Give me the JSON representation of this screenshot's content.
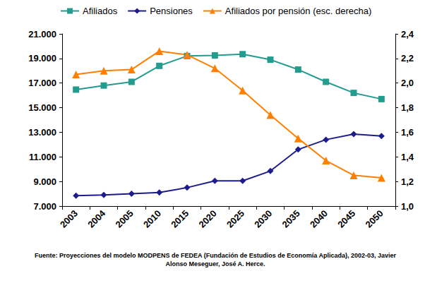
{
  "chart_data": {
    "type": "line",
    "categories": [
      "2003",
      "2004",
      "2005",
      "2010",
      "2015",
      "2020",
      "2025",
      "2030",
      "2035",
      "2040",
      "2045",
      "2050"
    ],
    "series": [
      {
        "name": "Afiliados",
        "color": "#239b8e",
        "marker": "square",
        "values": [
          16470,
          16800,
          17100,
          18400,
          19200,
          19250,
          19350,
          18900,
          18100,
          17100,
          16200,
          15700
        ]
      },
      {
        "name": "Pensiones",
        "color": "#1c1c8c",
        "marker": "diamond",
        "values": [
          7850,
          7900,
          8000,
          8100,
          8500,
          9050,
          9050,
          9850,
          11600,
          12400,
          12850,
          12700
        ]
      },
      {
        "name": "Afiliados por pensión (esc. derecha)",
        "color": "#ff8000",
        "marker": "triangle",
        "axis": "y2",
        "values": [
          2.07,
          2.1,
          2.11,
          2.26,
          2.23,
          2.12,
          1.94,
          1.74,
          1.55,
          1.37,
          1.25,
          1.23
        ]
      }
    ],
    "ylim": [
      7000,
      21000
    ],
    "yticks": [
      {
        "value": 7000,
        "label": "7.000"
      },
      {
        "value": 9000,
        "label": "9.000"
      },
      {
        "value": 11000,
        "label": "11.000"
      },
      {
        "value": 13000,
        "label": "13.000"
      },
      {
        "value": 15000,
        "label": "15.000"
      },
      {
        "value": 17000,
        "label": "17.000"
      },
      {
        "value": 19000,
        "label": "19.000"
      },
      {
        "value": 21000,
        "label": "21.000"
      }
    ],
    "y2lim": [
      1.0,
      2.4
    ],
    "y2ticks": [
      {
        "value": 1.0,
        "label": "1,0"
      },
      {
        "value": 1.2,
        "label": "1,2"
      },
      {
        "value": 1.4,
        "label": "1,4"
      },
      {
        "value": 1.6,
        "label": "1,6"
      },
      {
        "value": 1.8,
        "label": "1,8"
      },
      {
        "value": 2.0,
        "label": "2,0"
      },
      {
        "value": 2.2,
        "label": "2,2"
      },
      {
        "value": 2.4,
        "label": "2,4"
      }
    ],
    "grid": false,
    "legend": "top",
    "annotations": [
      "Fuente: Proyecciones  del modelo MODPENS de FEDEA (Fundación de Estudios de Economía Aplicada), 2002-03,  Javier Alonso Meseguer, José A. Herce."
    ]
  }
}
